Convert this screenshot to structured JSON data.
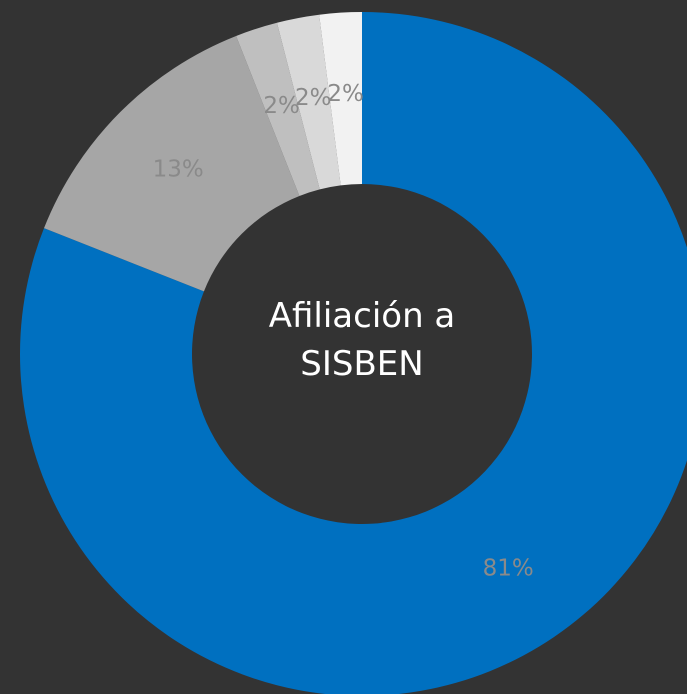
{
  "chart_data": {
    "type": "donut",
    "title": "Afiliación a SISBEN",
    "values": [
      81,
      13,
      2,
      2,
      2
    ],
    "value_labels": [
      "81%",
      "13%",
      "2%",
      "2%",
      "2%"
    ],
    "colors": [
      "#0070c0",
      "#a6a6a6",
      "#bfbfbf",
      "#d9d9d9",
      "#f2f2f2"
    ]
  }
}
